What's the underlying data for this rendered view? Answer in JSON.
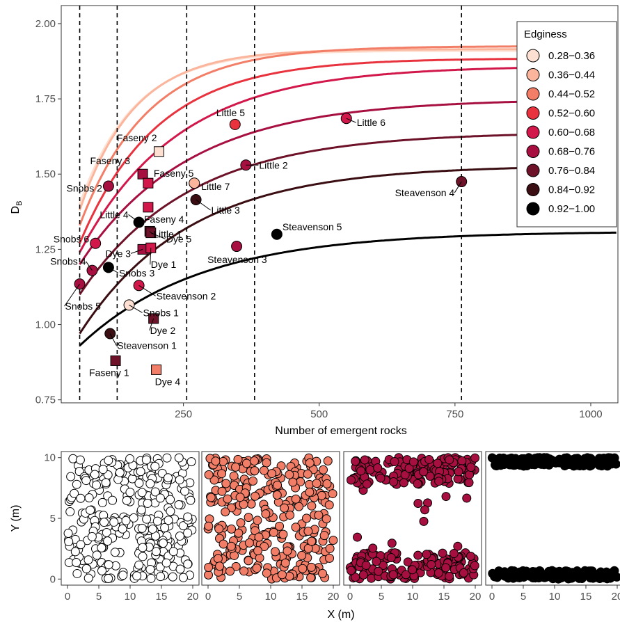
{
  "chart_data": [
    {
      "type": "scatter",
      "xlabel": "Number of emergent rocks",
      "ylabel_main": "D",
      "ylabel_sub": "B",
      "xlim": [
        25,
        1050
      ],
      "ylim": [
        0.74,
        2.06
      ],
      "x_ticks": [
        250,
        500,
        750,
        1000
      ],
      "x_tick_labels": [
        "250",
        "500",
        "750",
        "1000"
      ],
      "y_ticks": [
        0.75,
        1.0,
        1.25,
        1.5,
        1.75,
        2.0
      ],
      "y_tick_labels": [
        "0.75",
        "1.00",
        "1.25",
        "1.50",
        "1.75",
        "2.00"
      ],
      "grid": false,
      "vlines": [
        59,
        128,
        256,
        381,
        762
      ],
      "legend": {
        "title": "Edginess",
        "position": "right",
        "entries": [
          {
            "label": "0.28−0.36",
            "color": "#fde0d2"
          },
          {
            "label": "0.36−0.44",
            "color": "#fbb59c"
          },
          {
            "label": "0.44−0.52",
            "color": "#f27e67"
          },
          {
            "label": "0.52−0.60",
            "color": "#e8333f"
          },
          {
            "label": "0.60−0.68",
            "color": "#d2174a"
          },
          {
            "label": "0.68−0.76",
            "color": "#a60f40"
          },
          {
            "label": "0.76−0.84",
            "color": "#6d1228"
          },
          {
            "label": "0.84−0.92",
            "color": "#3a0e12"
          },
          {
            "label": "0.92−1.00",
            "color": "#000000"
          }
        ]
      },
      "curves": [
        {
          "color": "#fde0d2",
          "x0": 59,
          "y0": 1.4,
          "asym": 1.91,
          "k": 0.01
        },
        {
          "color": "#fbb59c",
          "x0": 59,
          "y0": 1.38,
          "asym": 1.915,
          "k": 0.01
        },
        {
          "color": "#f27e67",
          "x0": 59,
          "y0": 1.33,
          "asym": 1.925,
          "k": 0.008
        },
        {
          "color": "#e8333f",
          "x0": 59,
          "y0": 1.27,
          "asym": 1.885,
          "k": 0.007
        },
        {
          "color": "#d2174a",
          "x0": 59,
          "y0": 1.24,
          "asym": 1.86,
          "k": 0.0055
        },
        {
          "color": "#a60f40",
          "x0": 59,
          "y0": 1.2,
          "asym": 1.75,
          "k": 0.005
        },
        {
          "color": "#6d1228",
          "x0": 59,
          "y0": 1.1,
          "asym": 1.64,
          "k": 0.005
        },
        {
          "color": "#3a0e12",
          "x0": 59,
          "y0": 0.97,
          "asym": 1.53,
          "k": 0.005
        },
        {
          "color": "#000000",
          "x0": 59,
          "y0": 0.93,
          "asym": 1.31,
          "k": 0.0045
        }
      ],
      "points": [
        {
          "label": "Faseny 2",
          "x": 205,
          "y": 1.575,
          "shape": "square",
          "color": "#fde0d2"
        },
        {
          "label": "Faseny 3",
          "x": 175,
          "y": 1.5,
          "shape": "square",
          "color": "#a60f40"
        },
        {
          "label": "Faseny 5",
          "x": 185,
          "y": 1.47,
          "shape": "square",
          "color": "#d2174a"
        },
        {
          "label": "Faseny 4",
          "x": 185,
          "y": 1.39,
          "shape": "square",
          "color": "#d2174a"
        },
        {
          "label": "Little 1",
          "x": 188,
          "y": 1.31,
          "shape": "square",
          "color": "#6d1228"
        },
        {
          "label": "Dye 5",
          "x": 190,
          "y": 1.305,
          "shape": "square",
          "color": "#6d1228"
        },
        {
          "label": "Dye 3",
          "x": 175,
          "y": 1.25,
          "shape": "square",
          "color": "#a60f40"
        },
        {
          "label": "Dye 1",
          "x": 190,
          "y": 1.255,
          "shape": "square",
          "color": "#d2174a"
        },
        {
          "label": "Dye 2",
          "x": 195,
          "y": 1.02,
          "shape": "square",
          "color": "#6d1228"
        },
        {
          "label": "Faseny 1",
          "x": 125,
          "y": 0.88,
          "shape": "square",
          "color": "#6d1228"
        },
        {
          "label": "Dye 4",
          "x": 200,
          "y": 0.85,
          "shape": "square",
          "color": "#f27e67"
        },
        {
          "label": "Little 5",
          "x": 345,
          "y": 1.665,
          "shape": "circle",
          "color": "#e8333f"
        },
        {
          "label": "Little 6",
          "x": 550,
          "y": 1.685,
          "shape": "circle",
          "color": "#d2174a"
        },
        {
          "label": "Little 2",
          "x": 365,
          "y": 1.53,
          "shape": "circle",
          "color": "#a60f40"
        },
        {
          "label": "Little 7",
          "x": 270,
          "y": 1.47,
          "shape": "circle",
          "color": "#fbb59c"
        },
        {
          "label": "Little 3",
          "x": 273,
          "y": 1.415,
          "shape": "circle",
          "color": "#3a0e12"
        },
        {
          "label": "Little 4",
          "x": 168,
          "y": 1.34,
          "shape": "circle",
          "color": "#000000"
        },
        {
          "label": "Steavenson 4",
          "x": 762,
          "y": 1.475,
          "shape": "circle",
          "color": "#6d1228"
        },
        {
          "label": "Steavenson 5",
          "x": 422,
          "y": 1.3,
          "shape": "circle",
          "color": "#000000"
        },
        {
          "label": "Steavenson 3",
          "x": 348,
          "y": 1.26,
          "shape": "circle",
          "color": "#a60f40"
        },
        {
          "label": "Steavenson 2",
          "x": 168,
          "y": 1.13,
          "shape": "circle",
          "color": "#d2174a"
        },
        {
          "label": "Steavenson 1",
          "x": 115,
          "y": 0.97,
          "shape": "circle",
          "color": "#3a0e12"
        },
        {
          "label": "Snobs 2",
          "x": 112,
          "y": 1.46,
          "shape": "circle",
          "color": "#a60f40"
        },
        {
          "label": "Snobs 6",
          "x": 88,
          "y": 1.27,
          "shape": "circle",
          "color": "#d2174a"
        },
        {
          "label": "Snobs 4",
          "x": 82,
          "y": 1.18,
          "shape": "circle",
          "color": "#a60f40"
        },
        {
          "label": "Snobs 3",
          "x": 112,
          "y": 1.19,
          "shape": "circle",
          "color": "#000000"
        },
        {
          "label": "Snobs 5",
          "x": 59,
          "y": 1.135,
          "shape": "circle",
          "color": "#a60f40"
        },
        {
          "label": "Snobs 1",
          "x": 150,
          "y": 1.065,
          "shape": "circle",
          "color": "#fde0d2"
        }
      ]
    },
    {
      "type": "scatter",
      "xlabel": "X (m)",
      "ylabel": "Y (m)",
      "xlim": [
        -1,
        21
      ],
      "ylim": [
        -0.5,
        10.5
      ],
      "x_ticks": [
        0,
        5,
        10,
        15,
        20
      ],
      "x_tick_labels": [
        "0",
        "5",
        "10",
        "15",
        "20"
      ],
      "y_ticks": [
        0,
        5,
        10
      ],
      "y_tick_labels": [
        "0",
        "5",
        "10"
      ],
      "panels": [
        {
          "fill": "#ffffff",
          "pattern": "uniform",
          "n": 300
        },
        {
          "fill": "#f27e67",
          "pattern": "bands",
          "n": 300,
          "band_width": 4.0,
          "gap_fill": 0.12
        },
        {
          "fill": "#a60f40",
          "pattern": "bands",
          "n": 300,
          "band_width": 2.2,
          "gap_fill": 0.02
        },
        {
          "fill": "#000000",
          "pattern": "bands",
          "n": 300,
          "band_width": 0.7,
          "gap_fill": 0.0
        }
      ]
    }
  ]
}
